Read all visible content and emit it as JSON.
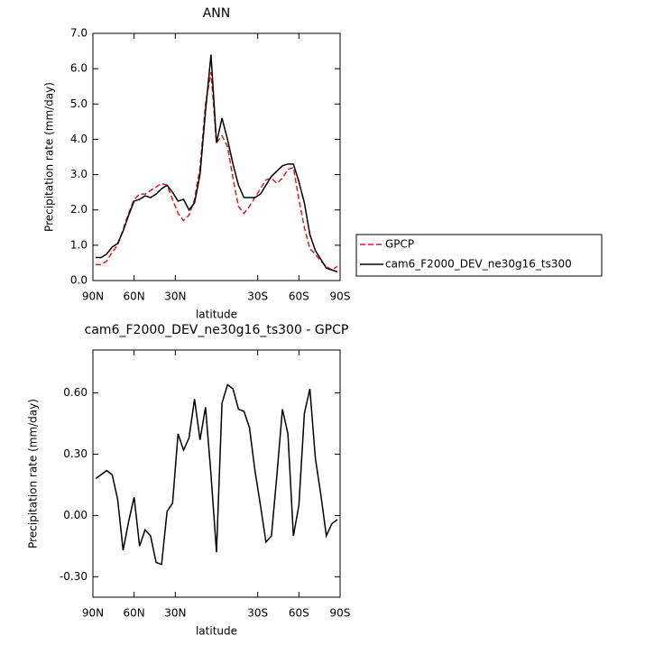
{
  "chart_data": [
    {
      "type": "line",
      "title": "ANN",
      "ylabel": "Precipitation rate (mm/day)",
      "xlabel": "latitude",
      "x": [
        88,
        84,
        80,
        76,
        72,
        68,
        64,
        60,
        56,
        52,
        48,
        44,
        40,
        36,
        32,
        28,
        24,
        20,
        16,
        12,
        8,
        4,
        0,
        -4,
        -8,
        -12,
        -16,
        -20,
        -24,
        -28,
        -32,
        -36,
        -40,
        -44,
        -48,
        -52,
        -56,
        -60,
        -64,
        -68,
        -72,
        -76,
        -80,
        -84,
        -88
      ],
      "xlim": [
        90,
        -90
      ],
      "xticks": [
        {
          "value": 90,
          "label": "90N"
        },
        {
          "value": 60,
          "label": "60N"
        },
        {
          "value": 30,
          "label": "30N"
        },
        {
          "value": -30,
          "label": "30S"
        },
        {
          "value": -60,
          "label": "60S"
        },
        {
          "value": -90,
          "label": "90S"
        }
      ],
      "ylim": [
        0,
        7
      ],
      "yticks": [
        {
          "value": 0,
          "label": "0.0"
        },
        {
          "value": 1,
          "label": "1.0"
        },
        {
          "value": 2,
          "label": "2.0"
        },
        {
          "value": 3,
          "label": "3.0"
        },
        {
          "value": 4,
          "label": "4.0"
        },
        {
          "value": 5,
          "label": "5.0"
        },
        {
          "value": 6,
          "label": "6.0"
        },
        {
          "value": 7,
          "label": "7.0"
        }
      ],
      "legend": "right",
      "series": [
        {
          "name": "GPCP",
          "color": "#e41a1c",
          "dash": "dashed",
          "values": [
            0.45,
            0.45,
            0.55,
            0.8,
            1.0,
            1.45,
            1.9,
            2.3,
            2.45,
            2.45,
            2.55,
            2.65,
            2.75,
            2.7,
            2.3,
            1.9,
            1.7,
            1.85,
            2.3,
            3.2,
            5.0,
            5.9,
            3.9,
            4.1,
            3.8,
            2.9,
            2.1,
            1.9,
            2.1,
            2.35,
            2.6,
            2.85,
            2.9,
            2.75,
            2.9,
            3.15,
            3.2,
            2.3,
            1.5,
            0.9,
            0.75,
            0.55,
            0.4,
            0.3,
            0.4
          ]
        },
        {
          "name": "cam6_F2000_DEV_ne30g16_ts300",
          "color": "#000000",
          "dash": "solid",
          "values": [
            0.65,
            0.65,
            0.75,
            0.95,
            1.05,
            1.4,
            1.85,
            2.25,
            2.3,
            2.4,
            2.35,
            2.45,
            2.6,
            2.7,
            2.5,
            2.25,
            2.3,
            2.0,
            2.2,
            3.0,
            4.8,
            6.4,
            3.9,
            4.6,
            4.0,
            3.3,
            2.7,
            2.35,
            2.35,
            2.35,
            2.45,
            2.7,
            2.95,
            3.1,
            3.25,
            3.3,
            3.3,
            2.8,
            2.2,
            1.3,
            0.85,
            0.6,
            0.35,
            0.3,
            0.25
          ]
        }
      ]
    },
    {
      "type": "line",
      "title": "cam6_F2000_DEV_ne30g16_ts300 - GPCP",
      "ylabel": "Precipitation rate (mm/day)",
      "xlabel": "latitude",
      "x": [
        88,
        84,
        80,
        76,
        72,
        68,
        64,
        60,
        56,
        52,
        48,
        44,
        40,
        36,
        32,
        28,
        24,
        20,
        16,
        12,
        8,
        4,
        0,
        -4,
        -8,
        -12,
        -16,
        -20,
        -24,
        -28,
        -32,
        -36,
        -40,
        -44,
        -48,
        -52,
        -56,
        -60,
        -64,
        -68,
        -72,
        -76,
        -80,
        -84,
        -88
      ],
      "xlim": [
        90,
        -90
      ],
      "xticks": [
        {
          "value": 90,
          "label": "90N"
        },
        {
          "value": 60,
          "label": "60N"
        },
        {
          "value": 30,
          "label": "30N"
        },
        {
          "value": -30,
          "label": "30S"
        },
        {
          "value": -60,
          "label": "60S"
        },
        {
          "value": -90,
          "label": "90S"
        }
      ],
      "ylim": [
        -0.4,
        0.81
      ],
      "yticks": [
        {
          "value": -0.3,
          "label": "-0.30"
        },
        {
          "value": 0,
          "label": "0.00"
        },
        {
          "value": 0.3,
          "label": "0.30"
        },
        {
          "value": 0.6,
          "label": "0.60"
        }
      ],
      "series": [
        {
          "color": "#000000",
          "dash": "solid",
          "values": [
            0.18,
            0.2,
            0.22,
            0.2,
            0.08,
            -0.17,
            -0.03,
            0.09,
            -0.15,
            -0.07,
            -0.1,
            -0.23,
            -0.24,
            0.02,
            0.06,
            0.4,
            0.32,
            0.38,
            0.57,
            0.37,
            0.53,
            0.2,
            -0.18,
            0.55,
            0.64,
            0.62,
            0.52,
            0.51,
            0.43,
            0.22,
            0.05,
            -0.13,
            -0.1,
            0.2,
            0.52,
            0.4,
            -0.1,
            0.05,
            0.5,
            0.62,
            0.28,
            0.1,
            -0.1,
            -0.04,
            -0.02
          ]
        }
      ]
    }
  ]
}
